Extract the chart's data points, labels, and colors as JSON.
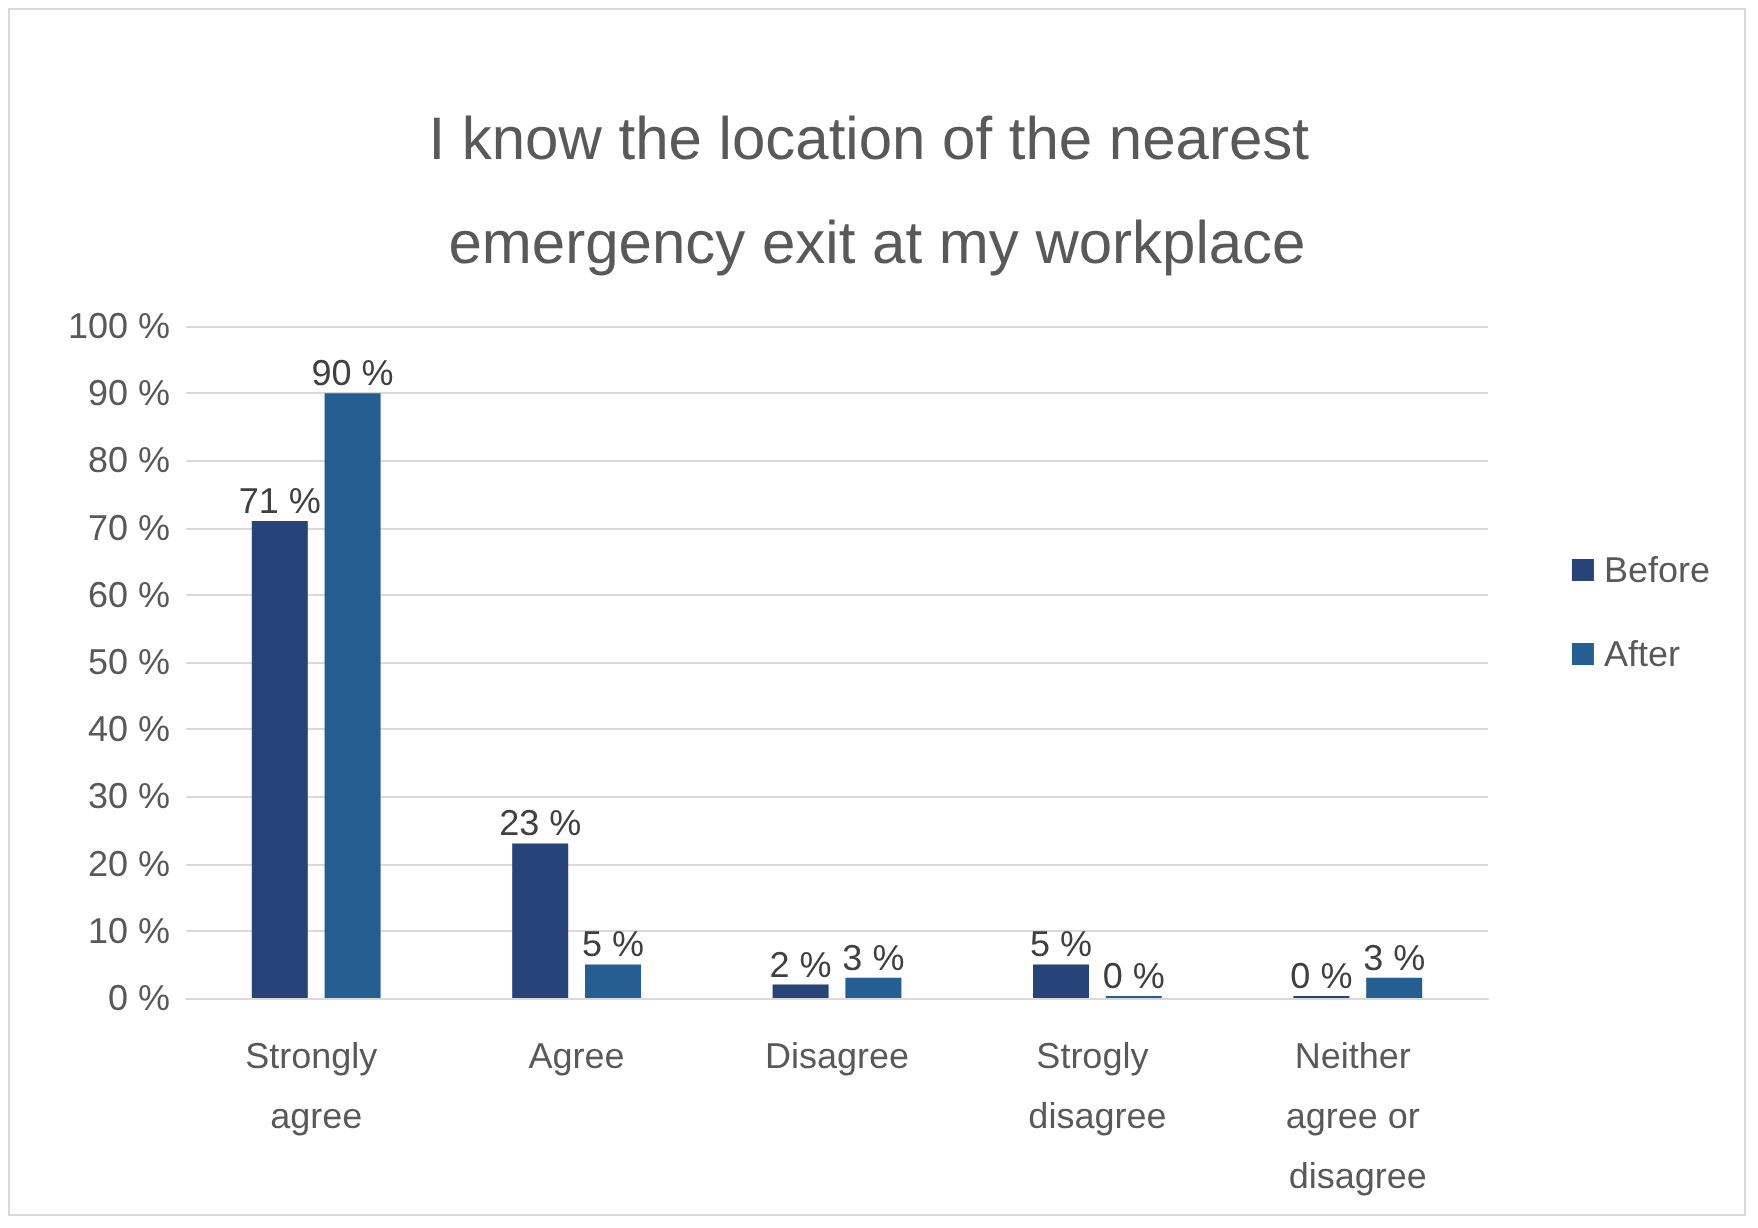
{
  "chart_data": {
    "type": "bar",
    "title": "I know the location of the nearest emergency exit at my workplace",
    "categories": [
      "Strongly agree",
      "Agree",
      "Disagree",
      "Strogly disagree",
      "Neither agree or disagree"
    ],
    "series": [
      {
        "name": "Before",
        "color": "#264478",
        "values": [
          71,
          23,
          2,
          5,
          0
        ],
        "value_labels": [
          "71 %",
          "23 %",
          "2 %",
          "5 %",
          "0 %"
        ]
      },
      {
        "name": "After",
        "color": "#255e91",
        "values": [
          90,
          5,
          3,
          0,
          3
        ],
        "value_labels": [
          "90 %",
          "5 %",
          "3 %",
          "0 %",
          "3 %"
        ]
      }
    ],
    "ylim": [
      0,
      100
    ],
    "yticks": [
      {
        "value": 0,
        "label": "0 %"
      },
      {
        "value": 10,
        "label": "10 %"
      },
      {
        "value": 20,
        "label": "20 %"
      },
      {
        "value": 30,
        "label": "30 %"
      },
      {
        "value": 40,
        "label": "40 %"
      },
      {
        "value": 50,
        "label": "50 %"
      },
      {
        "value": 60,
        "label": "60 %"
      },
      {
        "value": 70,
        "label": "70 %"
      },
      {
        "value": 80,
        "label": "80 %"
      },
      {
        "value": 90,
        "label": "90 %"
      },
      {
        "value": 100,
        "label": "100 %"
      }
    ],
    "grid": "y",
    "legend": "right"
  }
}
